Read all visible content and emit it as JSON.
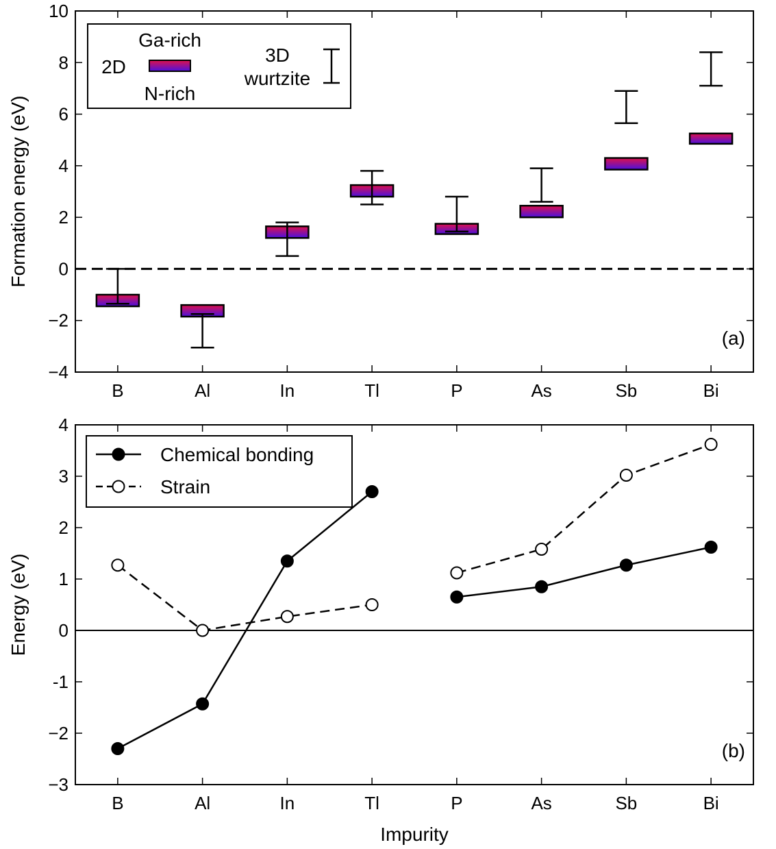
{
  "chart_data": [
    {
      "type": "bar",
      "panel_label": "(a)",
      "ylabel": "Formation energy (eV)",
      "xlabel": "",
      "ylim": [
        -4,
        10
      ],
      "yticks": [
        -4,
        -2,
        0,
        2,
        4,
        6,
        8,
        10
      ],
      "ytick_labels": [
        "−4",
        "−2",
        "0",
        "2",
        "4",
        "6",
        "8",
        "10"
      ],
      "categories": [
        "B",
        "Al",
        "In",
        "Tl",
        "P",
        "As",
        "Sb",
        "Bi"
      ],
      "reference_line": {
        "y": 0,
        "style": "dashed"
      },
      "series": [
        {
          "name": "2D",
          "kind": "range-box",
          "ga_rich": [
            -1.0,
            -1.4,
            1.65,
            3.25,
            1.75,
            2.45,
            4.3,
            5.25
          ],
          "n_rich": [
            -1.45,
            -1.85,
            1.2,
            2.8,
            1.35,
            2.0,
            3.85,
            4.85
          ],
          "colors": {
            "ga_rich": "#e0114a",
            "n_rich": "#4a11e0"
          }
        },
        {
          "name": "3D wurtzite",
          "kind": "range-bar",
          "upper": [
            0.0,
            -1.75,
            1.8,
            3.8,
            2.8,
            3.9,
            6.9,
            8.4
          ],
          "lower": [
            -1.35,
            -3.05,
            0.5,
            2.5,
            1.45,
            2.6,
            5.65,
            7.1
          ]
        }
      ],
      "legend": {
        "position": "top-left",
        "box_label": "2D",
        "box_top_label": "Ga-rich",
        "box_bottom_label": "N-rich",
        "bar_label_line1": "3D",
        "bar_label_line2": "wurtzite"
      }
    },
    {
      "type": "line",
      "panel_label": "(b)",
      "ylabel": "Energy (eV)",
      "xlabel": "Impurity",
      "ylim": [
        -3,
        4
      ],
      "yticks": [
        -3,
        -2,
        -1,
        0,
        1,
        2,
        3,
        4
      ],
      "ytick_labels": [
        "−3",
        "−2",
        "-1",
        "0",
        "1",
        "2",
        "3",
        "4"
      ],
      "categories": [
        "B",
        "Al",
        "In",
        "Tl",
        "P",
        "As",
        "Sb",
        "Bi"
      ],
      "reference_line": {
        "y": 0,
        "style": "solid"
      },
      "series": [
        {
          "name": "Chemical bonding",
          "marker": "filled-circle",
          "line": "solid",
          "segments": [
            [
              0,
              3
            ],
            [
              4,
              7
            ]
          ],
          "values": [
            -2.3,
            -1.43,
            1.35,
            2.7,
            0.65,
            0.85,
            1.27,
            1.62
          ]
        },
        {
          "name": "Strain",
          "marker": "open-circle",
          "line": "dashed",
          "segments": [
            [
              0,
              3
            ],
            [
              4,
              7
            ]
          ],
          "values": [
            1.27,
            0.0,
            0.27,
            0.5,
            1.12,
            1.58,
            3.02,
            3.62
          ]
        }
      ],
      "legend": {
        "position": "top-left"
      }
    }
  ]
}
